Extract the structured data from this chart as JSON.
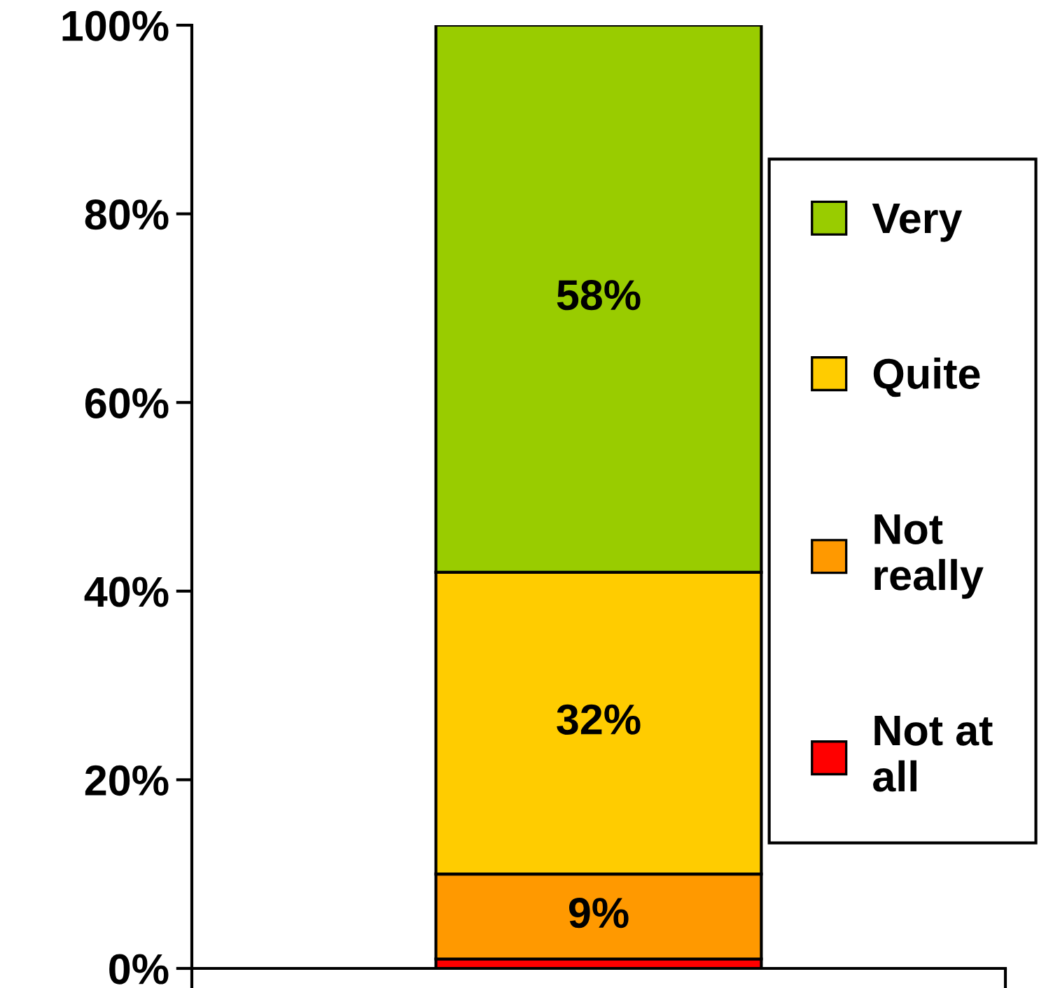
{
  "chart_data": {
    "type": "bar",
    "stacked": true,
    "categories": [
      null
    ],
    "series": [
      {
        "name": "Not at\nall",
        "color": "#ff0000",
        "values": [
          1
        ],
        "value_labels": [
          null
        ]
      },
      {
        "name": "Not\nreally",
        "color": "#ff9900",
        "values": [
          9
        ],
        "value_labels": [
          "9%"
        ]
      },
      {
        "name": "Quite",
        "color": "#ffcc00",
        "values": [
          32
        ],
        "value_labels": [
          "32%"
        ]
      },
      {
        "name": "Very",
        "color": "#99cc00",
        "values": [
          58
        ],
        "value_labels": [
          "58%"
        ]
      }
    ],
    "ylim": [
      0,
      100
    ],
    "yticks": [
      {
        "value": 0,
        "label": "0%"
      },
      {
        "value": 20,
        "label": "20%"
      },
      {
        "value": 40,
        "label": "40%"
      },
      {
        "value": 60,
        "label": "60%"
      },
      {
        "value": 80,
        "label": "80%"
      },
      {
        "value": 100,
        "label": "100%"
      }
    ],
    "legend": "right"
  }
}
